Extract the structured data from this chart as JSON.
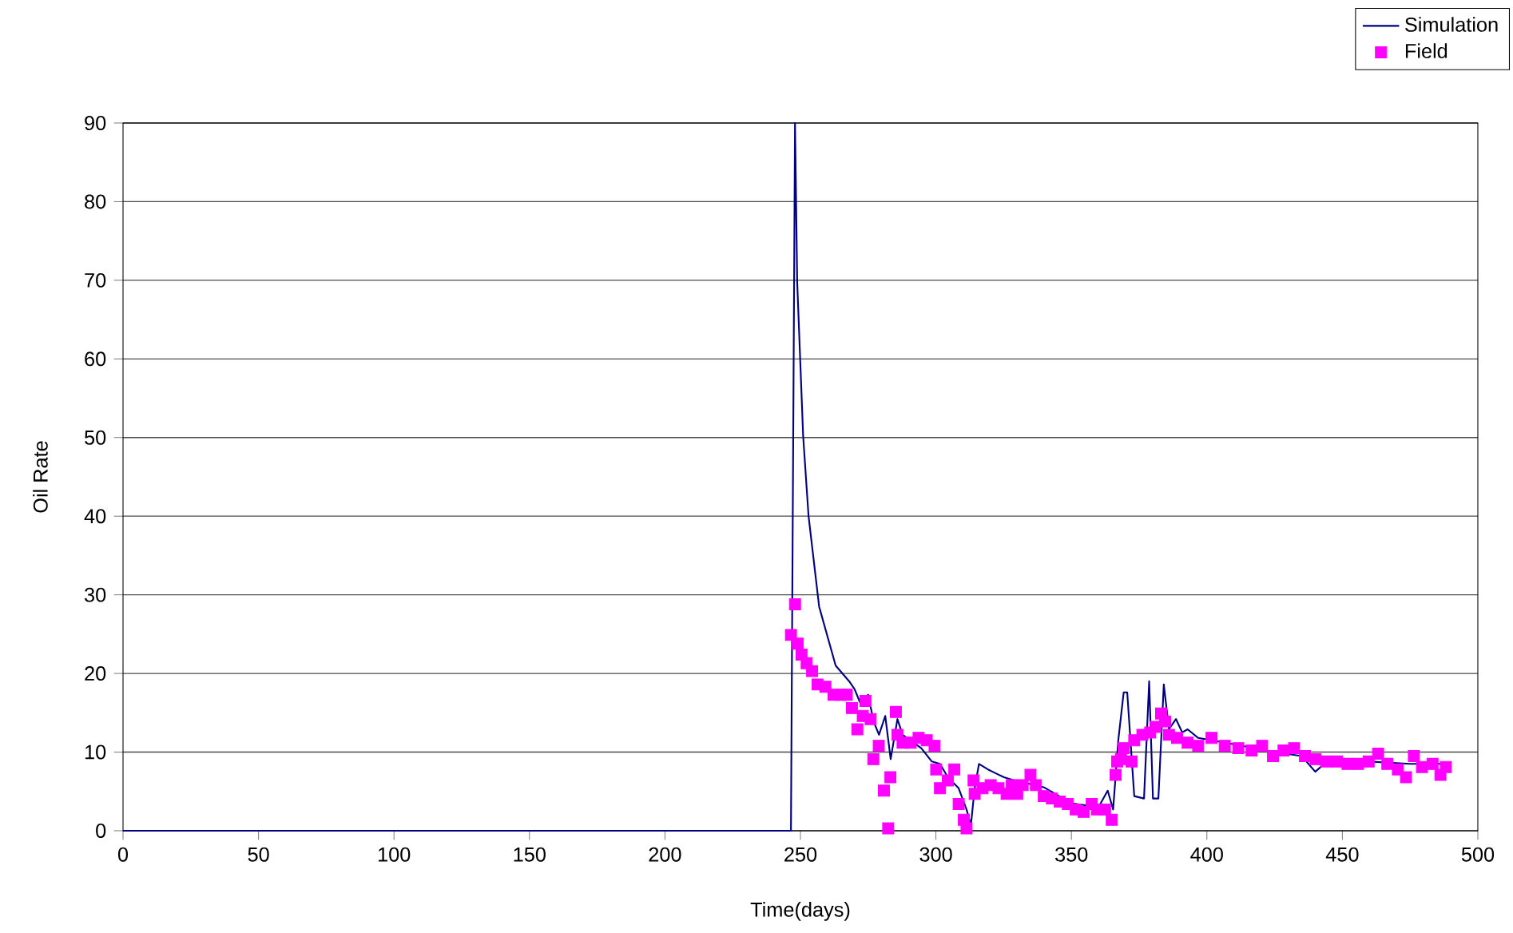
{
  "chart_data": {
    "type": "line",
    "xlabel": "Time(days)",
    "ylabel": "Oil Rate",
    "xlim": [
      0,
      500
    ],
    "ylim": [
      0,
      90
    ],
    "xticks": [
      0,
      50,
      100,
      150,
      200,
      250,
      300,
      350,
      400,
      450,
      500
    ],
    "yticks": [
      0,
      10,
      20,
      30,
      40,
      50,
      60,
      70,
      80,
      90
    ],
    "grid": "y",
    "legend": "top right",
    "series": [
      {
        "name": "Simulation",
        "color": "#000080",
        "marker": "none",
        "x": [
          0,
          246.5,
          248,
          248.8,
          251,
          253,
          256.9,
          263,
          268,
          270,
          272,
          275,
          277,
          279,
          281.3,
          283.3,
          285.8,
          287.7,
          294.6,
          298.5,
          301.5,
          304.4,
          308.4,
          311.3,
          312.9,
          314.3,
          315.9,
          319.2,
          322.1,
          325.1,
          328,
          340,
          350,
          360,
          363.4,
          365.4,
          367.3,
          369.3,
          370.6,
          373.2,
          376.8,
          378.7,
          380.1,
          382.1,
          384.1,
          386,
          388.6,
          390.9,
          392.9,
          396.8,
          410,
          425,
          435,
          440,
          445,
          460,
          475,
          488
        ],
        "values": [
          0,
          0,
          90,
          69.8,
          50.2,
          40,
          28.5,
          21,
          19,
          18,
          16.3,
          17.3,
          13.9,
          12.2,
          14.6,
          9.1,
          14.2,
          12.2,
          10.5,
          8.8,
          8.5,
          6.8,
          5.4,
          2.7,
          0.7,
          5.4,
          8.5,
          7.8,
          7.3,
          6.8,
          6.5,
          5.5,
          3.5,
          3,
          5.1,
          2.7,
          11.5,
          17.6,
          17.6,
          4.4,
          4.1,
          19,
          4.1,
          4.1,
          18.6,
          12.9,
          14.2,
          12.5,
          12.9,
          11.8,
          11,
          10,
          9.5,
          7.5,
          9,
          8.8,
          8.5,
          8.5
        ]
      },
      {
        "name": "Field",
        "type": "scatter",
        "color": "#ff00ff",
        "marker": "square",
        "x": [
          246.5,
          248,
          249,
          250.4,
          252.3,
          254.3,
          256.3,
          259.2,
          262.2,
          265.1,
          267.1,
          269,
          271,
          273,
          274,
          275.9,
          276.9,
          278.9,
          280.8,
          282.4,
          283.2,
          285.2,
          285.8,
          287.7,
          290.7,
          293.6,
          296.6,
          299.5,
          300.1,
          301.5,
          304.4,
          306.8,
          308.4,
          310.3,
          311.3,
          313.9,
          314.3,
          317.2,
          320.2,
          323.1,
          326.1,
          328,
          330,
          332,
          334.9,
          336.9,
          339.8,
          342.8,
          345.7,
          348.7,
          351.6,
          354.5,
          357.5,
          359.4,
          362.4,
          364.9,
          366.3,
          366.9,
          368.3,
          369.3,
          372.2,
          373.2,
          376.2,
          379.1,
          381.1,
          383.1,
          384.6,
          386,
          389,
          392.9,
          396.8,
          401.7,
          406.6,
          411.6,
          416.5,
          420.4,
          424.4,
          428.3,
          432.2,
          436.2,
          440.1,
          444,
          448,
          451.9,
          455.8,
          459.7,
          463.2,
          466.6,
          470.5,
          473.5,
          476.4,
          479.4,
          483.3,
          486.2,
          488.2
        ],
        "values": [
          24.9,
          28.8,
          23.8,
          22.4,
          21.3,
          20.3,
          18.6,
          18.3,
          17.3,
          17.3,
          17.3,
          15.6,
          12.9,
          14.6,
          16.5,
          14.2,
          9.1,
          10.8,
          5.1,
          0.3,
          6.8,
          15.1,
          12.2,
          11.2,
          11.2,
          11.8,
          11.5,
          10.8,
          7.8,
          5.4,
          6.4,
          7.8,
          3.4,
          1.4,
          0.3,
          6.4,
          4.7,
          5.4,
          5.8,
          5.4,
          4.7,
          5.8,
          4.7,
          5.8,
          7.1,
          5.8,
          4.4,
          4.1,
          3.7,
          3.4,
          2.7,
          2.4,
          3.4,
          2.7,
          2.7,
          1.4,
          7.1,
          8.8,
          9.1,
          10.5,
          8.8,
          11.5,
          12.2,
          12.5,
          13.2,
          14.9,
          13.9,
          12.2,
          11.8,
          11.2,
          10.8,
          11.8,
          10.8,
          10.5,
          10.2,
          10.8,
          9.5,
          10.2,
          10.5,
          9.5,
          9.1,
          8.8,
          8.8,
          8.5,
          8.5,
          8.8,
          9.8,
          8.5,
          7.8,
          6.8,
          9.5,
          8.1,
          8.5,
          7.1,
          8.1
        ]
      }
    ]
  }
}
